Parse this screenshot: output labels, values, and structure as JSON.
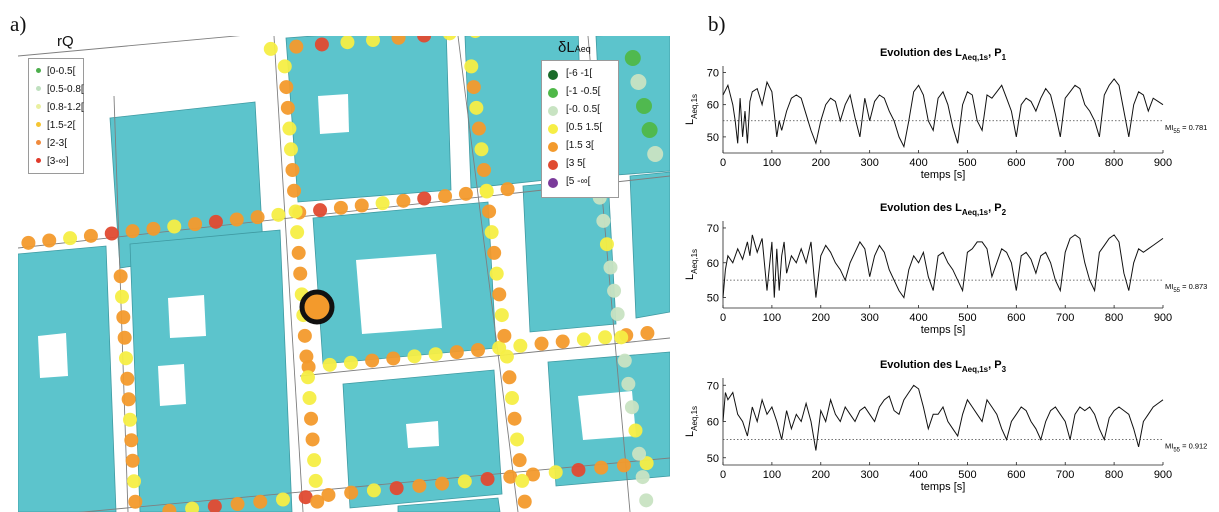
{
  "panel_a": {
    "label": "a)"
  },
  "panel_b": {
    "label": "b)"
  },
  "colors": {
    "building": "#5cc4cc",
    "road_line": "#7f7f7f",
    "highlight_fill": "#f39a2c",
    "highlight_ring": "#111111",
    "trace": "#111111"
  },
  "legend_rq": {
    "title": "rQ",
    "items": [
      {
        "label": "[0-0.5[",
        "color": "#4cae4c"
      },
      {
        "label": "[0.5-0.8[",
        "color": "#bfe0bf"
      },
      {
        "label": "[0.8-1.2[",
        "color": "#eaf0a0"
      },
      {
        "label": "[1.5-2[",
        "color": "#f5c532"
      },
      {
        "label": "[2-3[",
        "color": "#f08a3c"
      },
      {
        "label": "[3-∞]",
        "color": "#e03a2a"
      }
    ]
  },
  "legend_dl": {
    "title_main": "δL",
    "title_sub": "Aeq",
    "items": [
      {
        "label": "[-6 -1[",
        "color": "#1a6b2a"
      },
      {
        "label": "[-1 -0.5[",
        "color": "#4fb848"
      },
      {
        "label": "[-0. 0.5[",
        "color": "#c8e3c2"
      },
      {
        "label": "[0.5 1.5[",
        "color": "#f6ee45"
      },
      {
        "label": "[1.5 3[",
        "color": "#f39a2c"
      },
      {
        "label": "[3 5[",
        "color": "#e04a30"
      },
      {
        "label": "[5 -∞[",
        "color": "#7a3a9a"
      }
    ]
  },
  "chart_data": [
    {
      "type": "line",
      "title_main": "Evolution des L",
      "title_sub": "Aeq,1s",
      "title_point": "P",
      "title_point_sub": "1",
      "ylabel_main": "L",
      "ylabel_sub": "Aeq,1s",
      "xlabel": "temps [s]",
      "xlim": [
        0,
        900
      ],
      "ylim": [
        45,
        72
      ],
      "xticks": [
        0,
        100,
        200,
        300,
        400,
        500,
        600,
        700,
        800,
        900
      ],
      "yticks": [
        50,
        60,
        70
      ],
      "threshold": 55,
      "mi_label": "MI",
      "mi_sub": "55",
      "mi_value": "= 0.781",
      "series": [
        {
          "x": [
            0,
            10,
            20,
            25,
            30,
            35,
            40,
            45,
            50,
            55,
            60,
            70,
            80,
            90,
            100,
            110,
            115,
            120,
            130,
            140,
            150,
            160,
            170,
            180,
            190,
            200,
            210,
            220,
            230,
            240,
            250,
            260,
            270,
            280,
            290,
            300,
            310,
            320,
            330,
            340,
            350,
            360,
            370,
            380,
            390,
            400,
            410,
            420,
            430,
            440,
            450,
            460,
            470,
            480,
            490,
            500,
            510,
            520,
            530,
            540,
            550,
            560,
            570,
            580,
            590,
            600,
            610,
            620,
            630,
            640,
            650,
            660,
            670,
            680,
            690,
            700,
            710,
            720,
            730,
            740,
            750,
            760,
            770,
            780,
            790,
            800,
            810,
            820,
            830,
            840,
            850,
            860,
            870,
            880,
            890,
            900
          ],
          "y": [
            63,
            66,
            60,
            55,
            48,
            62,
            50,
            58,
            48,
            61,
            64,
            65,
            60,
            67,
            64,
            50,
            55,
            52,
            58,
            62,
            63,
            62,
            57,
            52,
            48,
            55,
            60,
            62,
            61,
            55,
            60,
            63,
            56,
            50,
            62,
            55,
            61,
            63,
            62,
            58,
            55,
            50,
            47,
            55,
            64,
            66,
            63,
            55,
            52,
            62,
            64,
            60,
            53,
            48,
            60,
            64,
            63,
            55,
            52,
            63,
            62,
            64,
            66,
            62,
            58,
            50,
            60,
            62,
            61,
            58,
            62,
            65,
            63,
            57,
            50,
            62,
            64,
            66,
            65,
            60,
            58,
            55,
            50,
            63,
            66,
            68,
            66,
            58,
            50,
            60,
            64,
            63,
            58,
            62,
            61,
            60
          ]
        }
      ]
    },
    {
      "type": "line",
      "title_main": "Evolution des L",
      "title_sub": "Aeq,1s",
      "title_point": "P",
      "title_point_sub": "2",
      "ylabel_main": "L",
      "ylabel_sub": "Aeq,1s",
      "xlabel": "temps [s]",
      "xlim": [
        0,
        900
      ],
      "ylim": [
        47,
        72
      ],
      "xticks": [
        0,
        100,
        200,
        300,
        400,
        500,
        600,
        700,
        800,
        900
      ],
      "yticks": [
        50,
        60,
        70
      ],
      "threshold": 55,
      "mi_label": "MI",
      "mi_sub": "55",
      "mi_value": "= 0.873",
      "series": [
        {
          "x": [
            0,
            5,
            10,
            20,
            30,
            40,
            50,
            55,
            60,
            70,
            80,
            90,
            100,
            105,
            110,
            115,
            120,
            125,
            130,
            140,
            150,
            160,
            170,
            180,
            190,
            200,
            210,
            220,
            230,
            240,
            250,
            260,
            270,
            280,
            290,
            300,
            310,
            320,
            330,
            340,
            350,
            360,
            370,
            380,
            390,
            400,
            410,
            420,
            430,
            440,
            450,
            460,
            470,
            480,
            490,
            500,
            510,
            520,
            530,
            540,
            550,
            560,
            570,
            580,
            590,
            600,
            610,
            620,
            630,
            640,
            650,
            660,
            670,
            680,
            690,
            700,
            710,
            720,
            730,
            740,
            750,
            760,
            770,
            780,
            790,
            800,
            810,
            820,
            830,
            840,
            850,
            860,
            870,
            880,
            890,
            900
          ],
          "y": [
            50,
            58,
            62,
            60,
            64,
            61,
            66,
            62,
            68,
            63,
            67,
            52,
            66,
            50,
            64,
            52,
            62,
            66,
            57,
            62,
            60,
            64,
            60,
            66,
            50,
            62,
            65,
            63,
            60,
            58,
            55,
            60,
            63,
            66,
            64,
            56,
            62,
            65,
            63,
            58,
            55,
            52,
            50,
            58,
            62,
            60,
            63,
            56,
            52,
            62,
            63,
            60,
            58,
            55,
            52,
            63,
            64,
            66,
            66,
            64,
            56,
            60,
            64,
            63,
            60,
            52,
            62,
            63,
            61,
            57,
            62,
            63,
            60,
            55,
            52,
            63,
            67,
            68,
            67,
            60,
            55,
            52,
            63,
            65,
            67,
            68,
            66,
            57,
            52,
            60,
            64,
            63,
            64,
            65,
            66,
            67
          ]
        }
      ]
    },
    {
      "type": "line",
      "title_main": "Evolution des L",
      "title_sub": "Aeq,1s",
      "title_point": "P",
      "title_point_sub": "3",
      "ylabel_main": "L",
      "ylabel_sub": "Aeq,1s",
      "xlabel": "temps [s]",
      "xlim": [
        0,
        900
      ],
      "ylim": [
        48,
        72
      ],
      "xticks": [
        0,
        100,
        200,
        300,
        400,
        500,
        600,
        700,
        800,
        900
      ],
      "yticks": [
        50,
        60,
        70
      ],
      "threshold": 55,
      "mi_label": "MI",
      "mi_sub": "55",
      "mi_value": "= 0.912",
      "series": [
        {
          "x": [
            0,
            5,
            10,
            20,
            30,
            40,
            50,
            60,
            70,
            80,
            90,
            100,
            110,
            120,
            130,
            140,
            150,
            160,
            170,
            180,
            190,
            200,
            210,
            220,
            230,
            240,
            250,
            260,
            270,
            280,
            290,
            300,
            310,
            320,
            330,
            340,
            350,
            360,
            370,
            380,
            390,
            400,
            410,
            420,
            430,
            440,
            450,
            460,
            470,
            480,
            490,
            500,
            510,
            520,
            530,
            540,
            550,
            560,
            570,
            580,
            590,
            600,
            610,
            620,
            630,
            640,
            650,
            660,
            670,
            680,
            690,
            700,
            710,
            720,
            730,
            740,
            750,
            760,
            770,
            780,
            790,
            800,
            810,
            820,
            830,
            840,
            850,
            860,
            870,
            880,
            890,
            900
          ],
          "y": [
            60,
            68,
            66,
            68,
            62,
            60,
            56,
            64,
            60,
            66,
            62,
            64,
            60,
            55,
            63,
            58,
            62,
            60,
            65,
            60,
            52,
            63,
            60,
            66,
            62,
            60,
            64,
            62,
            60,
            63,
            64,
            62,
            60,
            64,
            66,
            67,
            63,
            62,
            66,
            68,
            70,
            69,
            64,
            58,
            62,
            62,
            64,
            60,
            58,
            56,
            62,
            66,
            64,
            62,
            60,
            66,
            64,
            62,
            58,
            55,
            60,
            62,
            64,
            63,
            60,
            58,
            55,
            60,
            63,
            64,
            62,
            60,
            55,
            62,
            64,
            63,
            64,
            62,
            58,
            55,
            61,
            63,
            64,
            63,
            62,
            58,
            53,
            60,
            62,
            64,
            65,
            66
          ]
        }
      ]
    }
  ]
}
